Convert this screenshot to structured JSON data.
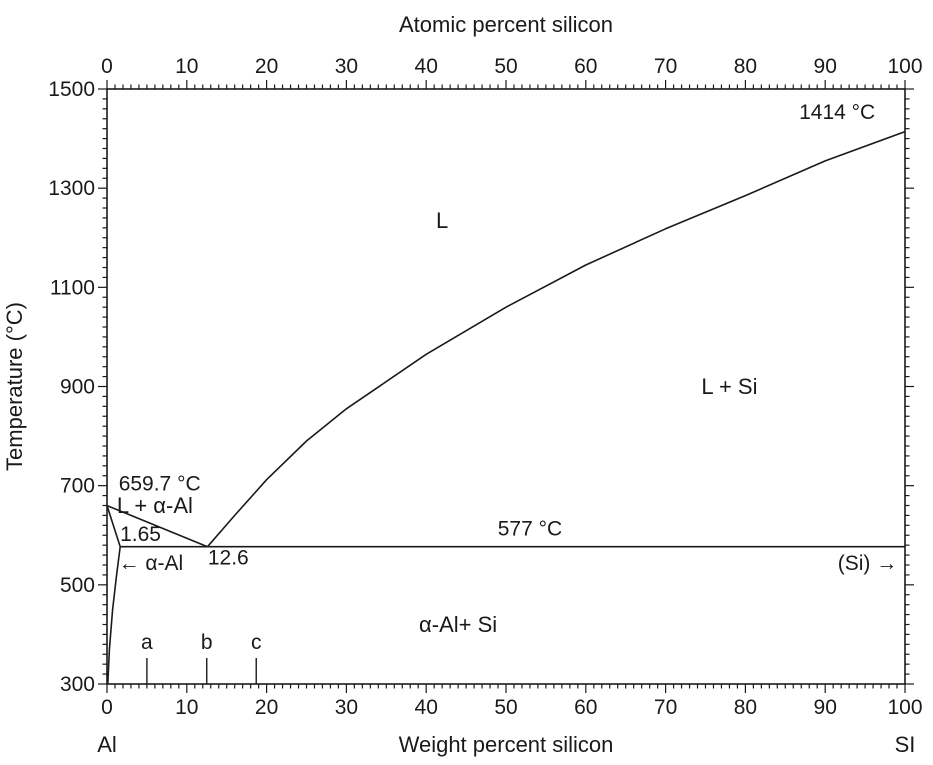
{
  "chart_data": {
    "type": "line",
    "title": "",
    "xlabel": "Weight percent silicon",
    "x2label": "Atomic percent silicon",
    "ylabel": "Temperature (°C)",
    "xlim": [
      0,
      100
    ],
    "ylim": [
      300,
      1500
    ],
    "x_ticks": [
      "0",
      "10",
      "20",
      "30",
      "40",
      "50",
      "60",
      "70",
      "80",
      "90",
      "100"
    ],
    "x2_ticks": [
      "0",
      "10",
      "20",
      "30",
      "40",
      "50",
      "60",
      "70",
      "80",
      "90",
      "100"
    ],
    "y_ticks": [
      "300",
      "500",
      "700",
      "900",
      "1100",
      "1300",
      "1500"
    ],
    "x_end_labels": {
      "left": "Al",
      "right": "SI"
    },
    "grid": false,
    "series": [
      {
        "id": "liquidus-al",
        "points": [
          [
            0,
            659.7
          ],
          [
            12.6,
            577
          ]
        ]
      },
      {
        "id": "liquidus-si",
        "points": [
          [
            12.6,
            577
          ],
          [
            16,
            640
          ],
          [
            20,
            712
          ],
          [
            25,
            790
          ],
          [
            30,
            855
          ],
          [
            40,
            965
          ],
          [
            50,
            1060
          ],
          [
            60,
            1145
          ],
          [
            70,
            1218
          ],
          [
            80,
            1285
          ],
          [
            90,
            1355
          ],
          [
            100,
            1414
          ]
        ]
      },
      {
        "id": "eutectic",
        "points": [
          [
            1.65,
            577
          ],
          [
            100,
            577
          ]
        ]
      },
      {
        "id": "solidus-al",
        "points": [
          [
            0,
            659.7
          ],
          [
            1.65,
            577
          ]
        ]
      },
      {
        "id": "solvus-al",
        "points": [
          [
            1.65,
            577
          ],
          [
            1.2,
            520
          ],
          [
            0.7,
            450
          ],
          [
            0.3,
            370
          ],
          [
            0.1,
            300
          ]
        ]
      }
    ],
    "markers": [
      {
        "label": "a",
        "x": 5
      },
      {
        "label": "b",
        "x": 12.5
      },
      {
        "label": "c",
        "x": 18.7
      }
    ],
    "regions": [
      {
        "label": "L",
        "x": 42,
        "y": 1220
      },
      {
        "label": "L + Si",
        "x": 78,
        "y": 885
      },
      {
        "label": "L + α-Al",
        "x": 6,
        "y": 645
      },
      {
        "label": "α-Al+ Si",
        "x": 44,
        "y": 405
      }
    ],
    "annotations": [
      {
        "label": "1414 °C",
        "x": 91.5,
        "y": 1440
      },
      {
        "label": "659.7 °C",
        "x": 6.6,
        "y": 690
      },
      {
        "label": "577 °C",
        "x": 53,
        "y": 600
      },
      {
        "label": "1.65",
        "x": 4.2,
        "y": 588
      },
      {
        "label": "12.6",
        "x": 15.2,
        "y": 541
      },
      {
        "label": "← α-Al",
        "x": 5.5,
        "y": 530
      },
      {
        "label": "(Si) →",
        "x": 95.3,
        "y": 530
      }
    ]
  }
}
